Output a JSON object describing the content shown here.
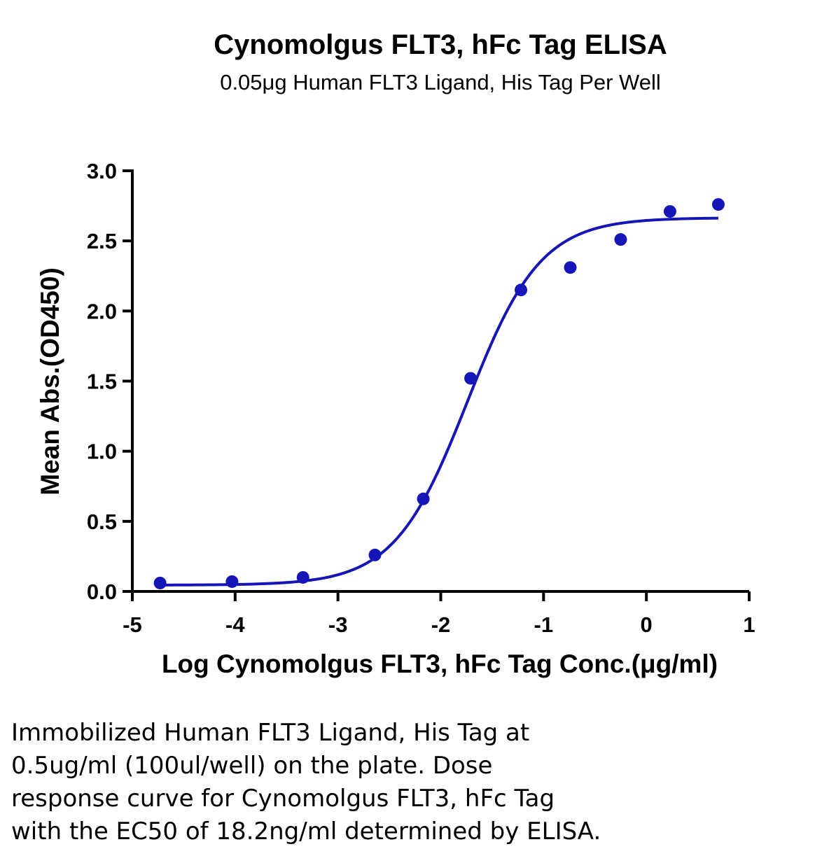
{
  "caption": [
    "Immobilized Human FLT3 Ligand, His Tag at",
    "0.5ug/ml (100ul/well) on the plate. Dose",
    "response curve for Cynomolgus FLT3, hFc Tag",
    "with the EC50 of 18.2ng/ml determined by ELISA."
  ],
  "chart_data": {
    "type": "scatter",
    "title": "Cynomolgus FLT3, hFc Tag ELISA",
    "subtitle": "0.05μg Human FLT3 Ligand, His Tag Per Well",
    "xlabel": "Log Cynomolgus FLT3, hFc Tag Conc.(μg/ml)",
    "ylabel": "Mean Abs.(OD450)",
    "xlim": [
      -5,
      1
    ],
    "ylim": [
      0,
      3.0
    ],
    "x_ticks": [
      "-5",
      "-4",
      "-3",
      "-2",
      "-1",
      "0",
      "1"
    ],
    "y_ticks": [
      "0.0",
      "0.5",
      "1.0",
      "1.5",
      "2.0",
      "2.5",
      "3.0"
    ],
    "grid": false,
    "color": "#1515b8",
    "series": [
      {
        "x": [
          -4.73,
          -4.03,
          -3.34,
          -2.64,
          -2.17,
          -1.71,
          -1.22,
          -0.74,
          -0.25,
          0.23,
          0.7
        ],
        "values": [
          0.06,
          0.07,
          0.1,
          0.26,
          0.66,
          1.52,
          2.15,
          2.31,
          2.51,
          2.71,
          2.76
        ]
      }
    ],
    "fit_curve": {
      "type": "4PL",
      "bottom": 0.045,
      "top": 2.665,
      "log_ec50": -1.74,
      "hill_slope": 1.22,
      "x_range": [
        -4.73,
        0.7
      ]
    }
  }
}
